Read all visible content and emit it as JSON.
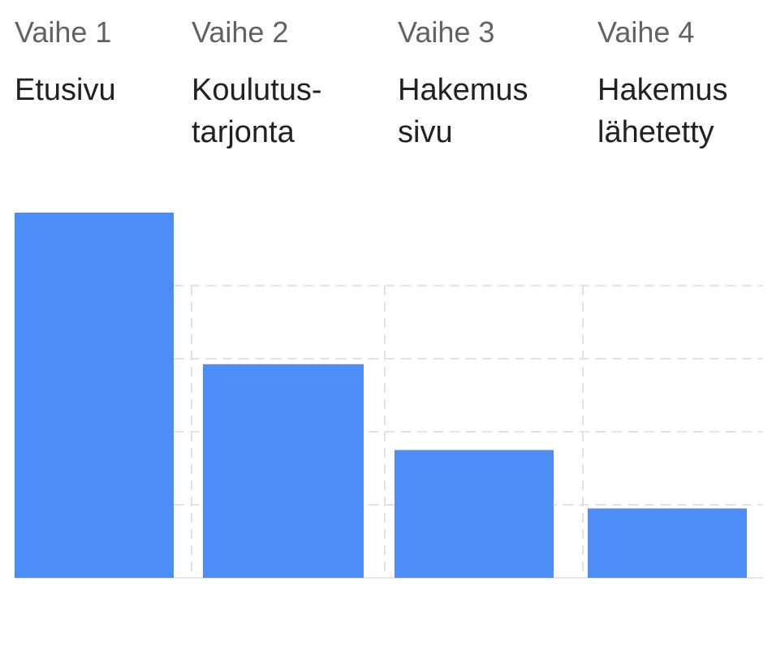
{
  "chart_data": {
    "type": "bar",
    "title": "",
    "xlabel": "",
    "ylabel": "",
    "categories": [
      {
        "step": "Vaihe 1",
        "lines": [
          "Etusivu"
        ]
      },
      {
        "step": "Vaihe 2",
        "lines": [
          "Koulutus-",
          "tarjonta"
        ]
      },
      {
        "step": "Vaihe 3",
        "lines": [
          "Hakemus",
          "sivu"
        ]
      },
      {
        "step": "Vaihe 4",
        "lines": [
          "Hakemus",
          "lähetetty"
        ]
      }
    ],
    "values": [
      1.0,
      0.585,
      0.35,
      0.19
    ],
    "ylim": [
      0,
      1.0
    ],
    "gridlines": [
      0.2,
      0.4,
      0.6,
      0.8
    ],
    "grid": true,
    "legend": "none",
    "bar_color": "#4d8df6",
    "grid_color": "#e2e2e2"
  }
}
